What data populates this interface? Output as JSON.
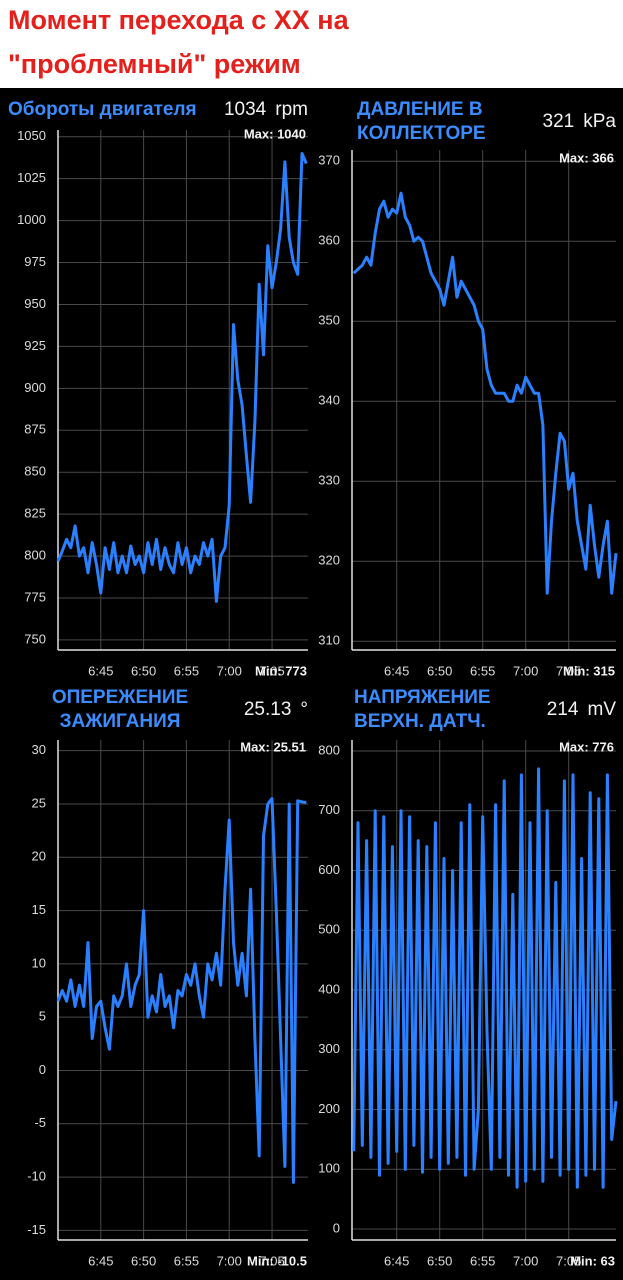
{
  "header": {
    "title": [
      "Момент перехода с ХХ на",
      "\"проблемный\" режим"
    ]
  },
  "chart_data": [
    {
      "type": "line",
      "title": [
        "Обороты двигателя"
      ],
      "current": "1034",
      "unit": "rpm",
      "max_label": "Max: 1040",
      "min_label": "Min: 773",
      "xlim": [
        400,
        429.2
      ],
      "xticks": [
        {
          "value": 405,
          "label": "6:45"
        },
        {
          "value": 410,
          "label": "6:50"
        },
        {
          "value": 415,
          "label": "6:55"
        },
        {
          "value": 420,
          "label": "7:00"
        },
        {
          "value": 425,
          "label": "7:05"
        }
      ],
      "ylim": [
        744,
        1054
      ],
      "yticks": [
        750,
        775,
        800,
        825,
        850,
        875,
        900,
        925,
        950,
        975,
        1000,
        1025,
        1050
      ],
      "grid": true,
      "x": [
        400,
        400.5,
        401,
        401.5,
        402,
        402.5,
        403,
        403.5,
        404,
        404.5,
        405,
        405.5,
        406,
        406.5,
        407,
        407.5,
        408,
        408.5,
        409,
        409.5,
        410,
        410.5,
        411,
        411.5,
        412,
        412.5,
        413,
        413.5,
        414,
        414.5,
        415,
        415.5,
        416,
        416.5,
        417,
        417.5,
        418,
        418.5,
        419,
        419.5,
        420,
        420.5,
        421,
        421.5,
        422,
        422.5,
        423,
        423.5,
        424,
        424.5,
        425,
        425.5,
        426,
        426.5,
        427,
        427.5,
        428,
        428.5,
        429
      ],
      "series": [
        {
          "name": "rpm",
          "color": "#2a80ff",
          "values": [
            797,
            803,
            810,
            805,
            818,
            800,
            805,
            790,
            808,
            795,
            778,
            805,
            792,
            808,
            790,
            800,
            790,
            806,
            795,
            800,
            790,
            808,
            795,
            810,
            792,
            805,
            795,
            790,
            808,
            795,
            805,
            790,
            800,
            795,
            808,
            800,
            810,
            773,
            800,
            805,
            830,
            938,
            905,
            890,
            860,
            832,
            880,
            962,
            920,
            985,
            960,
            975,
            995,
            1035,
            990,
            975,
            968,
            1040,
            1034
          ]
        }
      ]
    },
    {
      "type": "line",
      "title": [
        "ДАВЛЕНИЕ В",
        "КОЛЛЕКТОРЕ"
      ],
      "current": "321",
      "unit": "kPa",
      "max_label": "Max: 366",
      "min_label": "Min: 315",
      "xlim": [
        399.8,
        430.5
      ],
      "xticks": [
        {
          "value": 405,
          "label": "6:45"
        },
        {
          "value": 410,
          "label": "6:50"
        },
        {
          "value": 415,
          "label": "6:55"
        },
        {
          "value": 420,
          "label": "7:00"
        },
        {
          "value": 425,
          "label": "7:05"
        }
      ],
      "ylim": [
        308.9,
        371.4
      ],
      "yticks": [
        310,
        320,
        330,
        340,
        350,
        360,
        370
      ],
      "grid": true,
      "x": [
        400,
        400.5,
        401,
        401.5,
        402,
        402.5,
        403,
        403.5,
        404,
        404.5,
        405,
        405.5,
        406,
        406.5,
        407,
        407.5,
        408,
        408.5,
        409,
        409.5,
        410,
        410.5,
        411,
        411.5,
        412,
        412.5,
        413,
        413.5,
        414,
        414.5,
        415,
        415.5,
        416,
        416.5,
        417,
        417.5,
        418,
        418.5,
        419,
        419.5,
        420,
        420.5,
        421,
        421.5,
        422,
        422.5,
        423,
        423.5,
        424,
        424.5,
        425,
        425.5,
        426,
        426.5,
        427,
        427.5,
        428,
        428.5,
        429,
        429.5,
        430,
        430.5
      ],
      "series": [
        {
          "name": "kPa",
          "color": "#2a80ff",
          "values": [
            356,
            356.5,
            357,
            358,
            357,
            361,
            364,
            365,
            363,
            364,
            363.5,
            366,
            363,
            362,
            360,
            360.5,
            360,
            358,
            356,
            355,
            354,
            352,
            355,
            358,
            353,
            355,
            354,
            353,
            352,
            350,
            349,
            344,
            342,
            341,
            341,
            341,
            340,
            340,
            342,
            341,
            343,
            342,
            341,
            341,
            337,
            316,
            325,
            331,
            336,
            335,
            329,
            331,
            325,
            322,
            319,
            327,
            322,
            318,
            322,
            325,
            316,
            321
          ]
        }
      ]
    },
    {
      "type": "line",
      "title": [
        "ОПЕРЕЖЕНИЕ",
        "ЗАЖИГАНИЯ"
      ],
      "current": "25.13",
      "unit": "°",
      "max_label": "Max: 25.51",
      "min_label": "Min: -10.5",
      "xlim": [
        400,
        429.2
      ],
      "xticks": [
        {
          "value": 405,
          "label": "6:45"
        },
        {
          "value": 410,
          "label": "6:50"
        },
        {
          "value": 415,
          "label": "6:55"
        },
        {
          "value": 420,
          "label": "7:00"
        },
        {
          "value": 425,
          "label": "7:05"
        }
      ],
      "ylim": [
        -15.9,
        31
      ],
      "yticks": [
        -15,
        -10,
        -5,
        0,
        5,
        10,
        15,
        20,
        25,
        30
      ],
      "grid": true,
      "x": [
        400,
        400.5,
        401,
        401.5,
        402,
        402.5,
        403,
        403.5,
        404,
        404.5,
        405,
        405.5,
        406,
        406.5,
        407,
        407.5,
        408,
        408.5,
        409,
        409.5,
        410,
        410.5,
        411,
        411.5,
        412,
        412.5,
        413,
        413.5,
        414,
        414.5,
        415,
        415.5,
        416,
        416.5,
        417,
        417.5,
        418,
        418.5,
        419,
        419.5,
        420,
        420.5,
        421,
        421.5,
        422,
        422.5,
        423,
        423.5,
        424,
        424.5,
        425,
        425.5,
        426,
        426.5,
        427,
        427.5,
        428,
        428.5,
        429
      ],
      "series": [
        {
          "name": "deg",
          "color": "#2a80ff",
          "values": [
            6.5,
            7.5,
            6.5,
            8.5,
            6,
            8,
            6,
            12,
            3,
            6,
            6.5,
            4,
            2,
            7,
            6,
            7,
            10,
            6,
            8,
            9,
            15,
            5,
            7,
            5.5,
            9,
            6,
            7,
            4,
            7.5,
            7,
            9,
            8,
            10,
            7,
            5,
            10,
            8.5,
            11,
            8,
            17,
            23.5,
            12,
            8,
            11,
            7,
            17,
            3,
            -8,
            22,
            25,
            25.5,
            15,
            3,
            -9,
            25,
            -10.5,
            25.3,
            25.2,
            25.13
          ]
        }
      ]
    },
    {
      "type": "line",
      "title": [
        "НАПРЯЖЕНИЕ",
        "ВЕРХН. ДАТЧ."
      ],
      "current": "214",
      "unit": "mV",
      "max_label": "Max: 776",
      "min_label": "Min: 63",
      "xlim": [
        399.8,
        430.5
      ],
      "xticks": [
        {
          "value": 405,
          "label": "6:45"
        },
        {
          "value": 410,
          "label": "6:50"
        },
        {
          "value": 415,
          "label": "6:55"
        },
        {
          "value": 420,
          "label": "7:00"
        },
        {
          "value": 425,
          "label": "7:05"
        }
      ],
      "ylim": [
        -18.4,
        818.4
      ],
      "yticks": [
        0,
        100,
        200,
        300,
        400,
        500,
        600,
        700,
        800
      ],
      "grid": true,
      "x": [
        400,
        400.5,
        401,
        401.5,
        402,
        402.5,
        403,
        403.5,
        404,
        404.5,
        405,
        405.5,
        406,
        406.5,
        407,
        407.5,
        408,
        408.5,
        409,
        409.5,
        410,
        410.5,
        411,
        411.5,
        412,
        412.5,
        413,
        413.5,
        414,
        414.5,
        415,
        415.5,
        416,
        416.5,
        417,
        417.5,
        418,
        418.5,
        419,
        419.5,
        420,
        420.5,
        421,
        421.5,
        422,
        422.5,
        423,
        423.5,
        424,
        424.5,
        425,
        425.5,
        426,
        426.5,
        427,
        427.5,
        428,
        428.5,
        429,
        429.5,
        430,
        430.5
      ],
      "series": [
        {
          "name": "mV",
          "color": "#2a80ff",
          "values": [
            130,
            680,
            140,
            650,
            120,
            700,
            90,
            690,
            110,
            640,
            130,
            700,
            100,
            690,
            140,
            650,
            95,
            640,
            120,
            680,
            100,
            620,
            110,
            600,
            120,
            680,
            90,
            710,
            100,
            200,
            690,
            330,
            100,
            710,
            120,
            750,
            90,
            560,
            70,
            760,
            80,
            680,
            100,
            770,
            80,
            700,
            120,
            580,
            90,
            750,
            100,
            760,
            70,
            620,
            90,
            730,
            100,
            720,
            70,
            760,
            150,
            214
          ]
        }
      ]
    }
  ]
}
